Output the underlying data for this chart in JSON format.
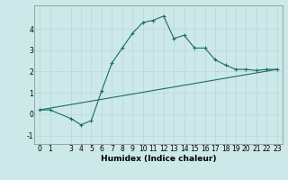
{
  "xlabel": "Humidex (Indice chaleur)",
  "ylabel": "",
  "background_color": "#cce8e8",
  "line_color": "#1a6b6b",
  "grid_color": "#b8d8d8",
  "curve1_x": [
    0,
    1,
    3,
    4,
    5,
    6,
    7,
    8,
    9,
    10,
    11,
    12,
    13,
    14,
    15,
    16,
    17,
    18,
    19,
    20,
    21,
    22,
    23
  ],
  "curve1_y": [
    0.2,
    0.2,
    -0.2,
    -0.5,
    -0.3,
    1.1,
    2.4,
    3.1,
    3.8,
    4.3,
    4.4,
    4.6,
    3.55,
    3.7,
    3.1,
    3.1,
    2.55,
    2.3,
    2.1,
    2.1,
    2.05,
    2.1,
    2.1
  ],
  "curve2_x": [
    0,
    23
  ],
  "curve2_y": [
    0.2,
    2.1
  ],
  "xlim": [
    -0.5,
    23.5
  ],
  "ylim": [
    -1.4,
    5.1
  ],
  "yticks": [
    -1,
    0,
    1,
    2,
    3,
    4
  ],
  "xticks": [
    0,
    1,
    3,
    4,
    5,
    6,
    7,
    8,
    9,
    10,
    11,
    12,
    13,
    14,
    15,
    16,
    17,
    18,
    19,
    20,
    21,
    22,
    23
  ],
  "label_fontsize": 6.5,
  "tick_fontsize": 5.5
}
